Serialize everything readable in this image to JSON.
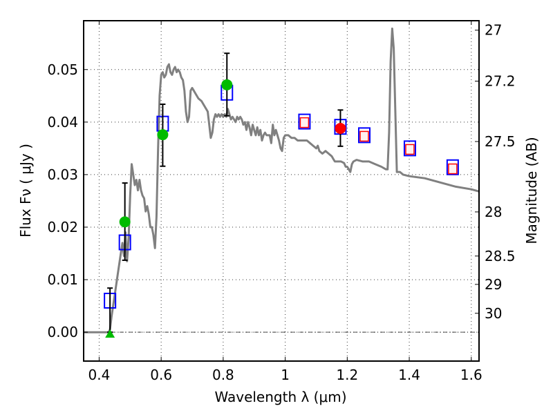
{
  "chart_data": {
    "type": "scatter",
    "title": "",
    "xlabel": "Wavelength  λ (μm)",
    "ylabel": "Flux  Fν  ( μJy )",
    "y2label": "Magnitude (AB)",
    "xlim": [
      0.35,
      1.625
    ],
    "ylim": [
      -0.0055,
      0.0593
    ],
    "grid": true,
    "x_ticks": [
      0.4,
      0.6,
      0.8,
      1.0,
      1.2,
      1.4,
      1.6
    ],
    "x_tick_labels": [
      "0.4",
      "0.6",
      "0.8",
      "1",
      "1.2",
      "1.4",
      "1.6"
    ],
    "y_ticks": [
      0.0,
      0.01,
      0.02,
      0.03,
      0.04,
      0.05
    ],
    "y_tick_labels": [
      "0.00",
      "0.01",
      "0.02",
      "0.03",
      "0.04",
      "0.05"
    ],
    "y2_ticks": [
      {
        "label": "27",
        "flux": 0.0575
      },
      {
        "label": "27.2",
        "flux": 0.0478
      },
      {
        "label": "27.5",
        "flux": 0.0363
      },
      {
        "label": "28",
        "flux": 0.0229
      },
      {
        "label": "28.5",
        "flux": 0.0145
      },
      {
        "label": "29",
        "flux": 0.0091
      },
      {
        "label": "30",
        "flux": 0.0036
      }
    ],
    "series": [
      {
        "name": "model-spectrum",
        "kind": "line",
        "color": "#808080",
        "points": [
          [
            0.35,
            0.0
          ],
          [
            0.43,
            0.0
          ],
          [
            0.435,
            0.0005
          ],
          [
            0.44,
            0.003
          ],
          [
            0.45,
            0.007
          ],
          [
            0.46,
            0.011
          ],
          [
            0.47,
            0.015
          ],
          [
            0.475,
            0.017
          ],
          [
            0.48,
            0.0145
          ],
          [
            0.485,
            0.019
          ],
          [
            0.49,
            0.0135
          ],
          [
            0.495,
            0.018
          ],
          [
            0.5,
            0.026
          ],
          [
            0.505,
            0.032
          ],
          [
            0.51,
            0.03
          ],
          [
            0.515,
            0.028
          ],
          [
            0.52,
            0.029
          ],
          [
            0.525,
            0.027
          ],
          [
            0.53,
            0.029
          ],
          [
            0.535,
            0.027
          ],
          [
            0.54,
            0.026
          ],
          [
            0.545,
            0.0255
          ],
          [
            0.55,
            0.023
          ],
          [
            0.555,
            0.024
          ],
          [
            0.56,
            0.0225
          ],
          [
            0.565,
            0.02
          ],
          [
            0.57,
            0.02
          ],
          [
            0.575,
            0.0185
          ],
          [
            0.58,
            0.016
          ],
          [
            0.585,
            0.022
          ],
          [
            0.59,
            0.035
          ],
          [
            0.595,
            0.045
          ],
          [
            0.6,
            0.049
          ],
          [
            0.605,
            0.0495
          ],
          [
            0.61,
            0.0485
          ],
          [
            0.615,
            0.049
          ],
          [
            0.62,
            0.0505
          ],
          [
            0.625,
            0.051
          ],
          [
            0.63,
            0.0495
          ],
          [
            0.635,
            0.049
          ],
          [
            0.64,
            0.05
          ],
          [
            0.645,
            0.0505
          ],
          [
            0.65,
            0.0495
          ],
          [
            0.655,
            0.05
          ],
          [
            0.66,
            0.0495
          ],
          [
            0.665,
            0.0485
          ],
          [
            0.67,
            0.048
          ],
          [
            0.675,
            0.046
          ],
          [
            0.68,
            0.042
          ],
          [
            0.685,
            0.04
          ],
          [
            0.69,
            0.041
          ],
          [
            0.695,
            0.046
          ],
          [
            0.7,
            0.0465
          ],
          [
            0.705,
            0.046
          ],
          [
            0.71,
            0.0455
          ],
          [
            0.72,
            0.0445
          ],
          [
            0.73,
            0.044
          ],
          [
            0.74,
            0.043
          ],
          [
            0.75,
            0.042
          ],
          [
            0.755,
            0.0395
          ],
          [
            0.76,
            0.037
          ],
          [
            0.765,
            0.038
          ],
          [
            0.77,
            0.0405
          ],
          [
            0.775,
            0.0415
          ],
          [
            0.78,
            0.041
          ],
          [
            0.785,
            0.0415
          ],
          [
            0.79,
            0.041
          ],
          [
            0.795,
            0.0415
          ],
          [
            0.8,
            0.041
          ],
          [
            0.805,
            0.0415
          ],
          [
            0.81,
            0.041
          ],
          [
            0.815,
            0.0425
          ],
          [
            0.82,
            0.0415
          ],
          [
            0.825,
            0.0405
          ],
          [
            0.83,
            0.041
          ],
          [
            0.835,
            0.0405
          ],
          [
            0.84,
            0.04
          ],
          [
            0.845,
            0.041
          ],
          [
            0.85,
            0.0405
          ],
          [
            0.855,
            0.041
          ],
          [
            0.86,
            0.0405
          ],
          [
            0.865,
            0.0395
          ],
          [
            0.87,
            0.04
          ],
          [
            0.875,
            0.0385
          ],
          [
            0.88,
            0.04
          ],
          [
            0.885,
            0.039
          ],
          [
            0.89,
            0.0375
          ],
          [
            0.895,
            0.0395
          ],
          [
            0.9,
            0.0385
          ],
          [
            0.905,
            0.0375
          ],
          [
            0.91,
            0.039
          ],
          [
            0.915,
            0.0375
          ],
          [
            0.92,
            0.0385
          ],
          [
            0.925,
            0.0365
          ],
          [
            0.93,
            0.0375
          ],
          [
            0.935,
            0.038
          ],
          [
            0.94,
            0.0375
          ],
          [
            0.95,
            0.0375
          ],
          [
            0.955,
            0.036
          ],
          [
            0.96,
            0.0395
          ],
          [
            0.965,
            0.0375
          ],
          [
            0.97,
            0.0385
          ],
          [
            0.975,
            0.0375
          ],
          [
            0.98,
            0.0365
          ],
          [
            0.985,
            0.035
          ],
          [
            0.99,
            0.0345
          ],
          [
            0.995,
            0.037
          ],
          [
            1.0,
            0.0375
          ],
          [
            1.01,
            0.0375
          ],
          [
            1.02,
            0.037
          ],
          [
            1.03,
            0.037
          ],
          [
            1.04,
            0.0365
          ],
          [
            1.05,
            0.0365
          ],
          [
            1.06,
            0.0365
          ],
          [
            1.07,
            0.0365
          ],
          [
            1.08,
            0.036
          ],
          [
            1.09,
            0.0355
          ],
          [
            1.1,
            0.035
          ],
          [
            1.105,
            0.0355
          ],
          [
            1.11,
            0.0345
          ],
          [
            1.12,
            0.034
          ],
          [
            1.13,
            0.0345
          ],
          [
            1.14,
            0.034
          ],
          [
            1.15,
            0.0335
          ],
          [
            1.155,
            0.033
          ],
          [
            1.16,
            0.0325
          ],
          [
            1.17,
            0.0325
          ],
          [
            1.18,
            0.0325
          ],
          [
            1.19,
            0.0322
          ],
          [
            1.195,
            0.0315
          ],
          [
            1.2,
            0.0315
          ],
          [
            1.205,
            0.031
          ],
          [
            1.21,
            0.0305
          ],
          [
            1.215,
            0.032
          ],
          [
            1.22,
            0.0325
          ],
          [
            1.23,
            0.0328
          ],
          [
            1.25,
            0.0325
          ],
          [
            1.27,
            0.0325
          ],
          [
            1.29,
            0.032
          ],
          [
            1.31,
            0.0315
          ],
          [
            1.325,
            0.031
          ],
          [
            1.33,
            0.031
          ],
          [
            1.335,
            0.038
          ],
          [
            1.34,
            0.0515
          ],
          [
            1.345,
            0.0578
          ],
          [
            1.35,
            0.054
          ],
          [
            1.355,
            0.042
          ],
          [
            1.36,
            0.0305
          ],
          [
            1.37,
            0.0305
          ],
          [
            1.38,
            0.03
          ],
          [
            1.4,
            0.0297
          ],
          [
            1.45,
            0.0293
          ],
          [
            1.5,
            0.0285
          ],
          [
            1.55,
            0.0277
          ],
          [
            1.6,
            0.0272
          ],
          [
            1.625,
            0.0268
          ]
        ]
      },
      {
        "name": "model-photometry",
        "kind": "open-square",
        "color": "#0000ff",
        "points": [
          [
            0.435,
            0.006
          ],
          [
            0.483,
            0.0171
          ],
          [
            0.605,
            0.0397
          ],
          [
            0.812,
            0.0456
          ],
          [
            1.062,
            0.0401
          ],
          [
            1.178,
            0.0391
          ],
          [
            1.255,
            0.0375
          ],
          [
            1.402,
            0.035
          ],
          [
            1.54,
            0.0314
          ]
        ]
      },
      {
        "name": "observed-hst-optical",
        "kind": "filled-circle",
        "color": "#00bb00",
        "points": [
          {
            "x": 0.483,
            "y": 0.021,
            "err_low": 0.0137,
            "err_high": 0.0284
          },
          {
            "x": 0.605,
            "y": 0.0376,
            "err_low": 0.0316,
            "err_high": 0.0434
          },
          {
            "x": 0.812,
            "y": 0.0471,
            "err_low": 0.0412,
            "err_high": 0.0531
          }
        ]
      },
      {
        "name": "upper-limit",
        "kind": "filled-triangle",
        "color": "#00bb00",
        "points": [
          {
            "x": 0.435,
            "y": 0.0,
            "err_low": 0.0,
            "err_high": 0.0084
          }
        ]
      },
      {
        "name": "observed-nir",
        "kind": "filled-circle",
        "color": "#ff0000",
        "points": [
          {
            "x": 1.178,
            "y": 0.0388,
            "err_low": 0.0354,
            "err_high": 0.0423
          }
        ]
      },
      {
        "name": "predicted-nir",
        "kind": "open-square",
        "color": "#ff0000",
        "points": [
          [
            1.062,
            0.0399
          ],
          [
            1.255,
            0.0373
          ],
          [
            1.402,
            0.0348
          ],
          [
            1.54,
            0.0311
          ]
        ]
      }
    ]
  }
}
